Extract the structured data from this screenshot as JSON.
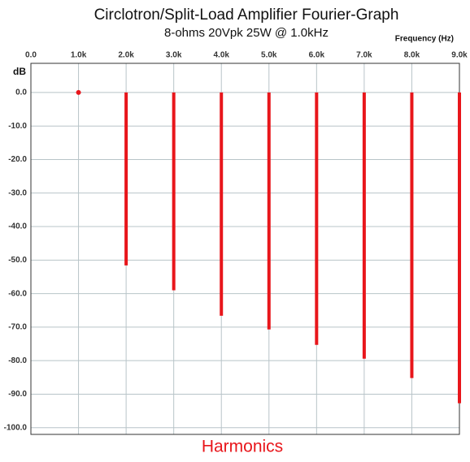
{
  "chart_data": {
    "type": "stem",
    "title": "Circlotron/Split-Load Amplifier Fourier-Graph",
    "subtitle": "8-ohms 20Vpk 25W @ 1.0kHz",
    "x_label": "Frequency   (Hz)",
    "y_label": "dB",
    "annotation": "Harmonics",
    "x": [
      1000,
      2000,
      3000,
      4000,
      5000,
      6000,
      7000,
      8000,
      9000
    ],
    "values": [
      0,
      -51.6,
      -59,
      -66.6,
      -70.7,
      -75.3,
      -79.4,
      -85.2,
      -92.7
    ],
    "color": "#e8161b",
    "xlim": [
      0,
      9000
    ],
    "ylim": [
      -102,
      8.7
    ],
    "xticks": [
      {
        "value": 0,
        "label": "0.0"
      },
      {
        "value": 1000,
        "label": "1.0k"
      },
      {
        "value": 2000,
        "label": "2.0k"
      },
      {
        "value": 3000,
        "label": "3.0k"
      },
      {
        "value": 4000,
        "label": "4.0k"
      },
      {
        "value": 5000,
        "label": "5.0k"
      },
      {
        "value": 6000,
        "label": "6.0k"
      },
      {
        "value": 7000,
        "label": "7.0k"
      },
      {
        "value": 8000,
        "label": "8.0k"
      },
      {
        "value": 9000,
        "label": "9.0k"
      }
    ],
    "yticks": [
      {
        "value": 0,
        "label": "0.0"
      },
      {
        "value": -10,
        "label": "-10.0"
      },
      {
        "value": -20,
        "label": "-20.0"
      },
      {
        "value": -30,
        "label": "-30.0"
      },
      {
        "value": -40,
        "label": "-40.0"
      },
      {
        "value": -50,
        "label": "-50.0"
      },
      {
        "value": -60,
        "label": "-60.0"
      },
      {
        "value": -70,
        "label": "-70.0"
      },
      {
        "value": -80,
        "label": "-80.0"
      },
      {
        "value": -90,
        "label": "-90.0"
      },
      {
        "value": -100,
        "label": "-100.0"
      }
    ],
    "grid": true
  }
}
